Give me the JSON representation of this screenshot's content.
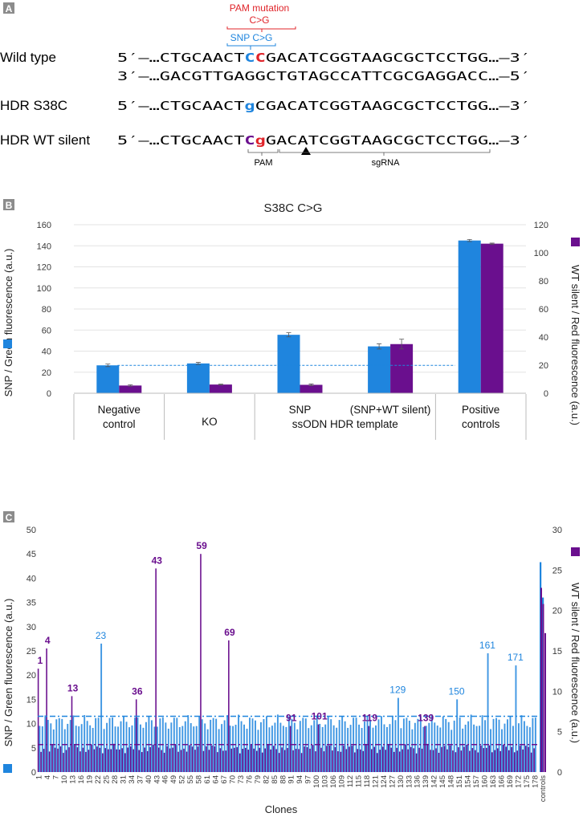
{
  "colors": {
    "blue": "#1f85de",
    "purple": "#6a0f8e",
    "red": "#e0242a",
    "panel_tag_bg": "#8c8c8c",
    "grid": "#e3e3e3",
    "axis_text": "#3a3a3a"
  },
  "panel_a": {
    "tag": "A",
    "pam_label_line1": "PAM mutation",
    "pam_label_line2": "C>G",
    "snp_label": "SNP C>G",
    "rows": [
      {
        "label": "Wild type",
        "end5": "5′–…",
        "pre": "CTGCAACT",
        "hl": "CC",
        "post": "GACATCGGTAAGCGCTCCTGG",
        "end3": "…–3′"
      },
      {
        "label": "",
        "end5": "3′–…",
        "pre": "GACGTTGAGGCTGTAGCCATTCGCGAGGACC",
        "hl": "",
        "post": "",
        "end3": "…–5′"
      },
      {
        "label": "HDR S38C",
        "end5": "5′–…",
        "pre": "CTGCAACT",
        "hl": "g",
        "post": "CGACATCGGTAAGCGCTCCTGG",
        "end3": "…–3′"
      },
      {
        "label": "HDR WT silent",
        "end5": "5′–…",
        "pre": "CTGCAACT",
        "hl": "Cg",
        "post": "GACATCGGTAAGCGCTCCTGG",
        "end3": "…–3′"
      }
    ],
    "pam_bracket_label": "PAM",
    "sgrna_bracket_label": "sgRNA"
  },
  "chart_data": [
    {
      "type": "bar",
      "panel_tag": "B",
      "title": "S38C C>G",
      "ylabel": "SNP / Green fluorescence (a.u.)",
      "y2label": "WT silent / Red fluorescence (a.u.)",
      "ylim": [
        0,
        160
      ],
      "y2lim": [
        0,
        120
      ],
      "yticks": [
        0,
        20,
        40,
        60,
        80,
        100,
        120,
        140,
        160
      ],
      "y2ticks": [
        0,
        20,
        40,
        60,
        80,
        100,
        120
      ],
      "series": [
        {
          "name": "SNP",
          "axis": "left",
          "values": [
            26.5,
            28.3,
            55.5,
            44.5,
            145
          ],
          "errors": [
            1.2,
            1.0,
            2.0,
            2.5,
            1.0
          ]
        },
        {
          "name": "WT silent",
          "axis": "right",
          "values": [
            5.5,
            6.2,
            6.0,
            35.0,
            106.5
          ],
          "errors": [
            0.5,
            0.3,
            0.6,
            3.5,
            0.4
          ]
        }
      ],
      "baseline_value": 26.5,
      "category_labels": [
        {
          "text": "Negative",
          "line2": "control"
        },
        {
          "text": "KO",
          "line2": ""
        },
        {
          "text": "SNP",
          "line2": ""
        },
        {
          "text": "(SNP+WT silent)",
          "line2": ""
        },
        {
          "text": "Positive",
          "line2": "controls"
        }
      ],
      "group_label": "ssODN HDR template"
    },
    {
      "type": "bar",
      "panel_tag": "C",
      "xlabel": "Clones",
      "ylabel": "SNP / Green fluorescence (a.u.)",
      "y2label": "WT silent / Red fluorescence (a.u.)",
      "ylim": [
        0,
        50
      ],
      "y2lim": [
        0,
        30
      ],
      "yticks": [
        0,
        5,
        10,
        15,
        20,
        25,
        30,
        35,
        40,
        45,
        50
      ],
      "y2ticks": [
        0,
        5,
        10,
        15,
        20,
        25,
        30
      ],
      "n_clones": 178,
      "x_tick_labels": [
        "1",
        "4",
        "7",
        "10",
        "13",
        "16",
        "19",
        "22",
        "25",
        "28",
        "31",
        "34",
        "37",
        "40",
        "43",
        "46",
        "49",
        "52",
        "55",
        "58",
        "61",
        "64",
        "67",
        "70",
        "73",
        "76",
        "79",
        "82",
        "85",
        "88",
        "91",
        "94",
        "97",
        "100",
        "103",
        "106",
        "109",
        "112",
        "115",
        "118",
        "121",
        "124",
        "127",
        "130",
        "133",
        "136",
        "139",
        "142",
        "145",
        "148",
        "151",
        "154",
        "157",
        "160",
        "163",
        "166",
        "169",
        "172",
        "175",
        "178",
        "controls"
      ],
      "snp_baseline": 11.5,
      "silent_baseline": 3.4,
      "snp_highlight": [
        {
          "clone": 23,
          "value": 26.5
        },
        {
          "clone": 129,
          "value": 15.3
        },
        {
          "clone": 150,
          "value": 15.0
        },
        {
          "clone": 161,
          "value": 24.5
        },
        {
          "clone": 171,
          "value": 22.0
        }
      ],
      "silent_highlight": [
        {
          "clone": 1,
          "value": 12.8
        },
        {
          "clone": 4,
          "value": 15.3
        },
        {
          "clone": 13,
          "value": 9.4
        },
        {
          "clone": 36,
          "value": 9.0
        },
        {
          "clone": 43,
          "value": 25.2
        },
        {
          "clone": 59,
          "value": 27.0
        },
        {
          "clone": 69,
          "value": 16.3
        },
        {
          "clone": 91,
          "value": 5.7
        },
        {
          "clone": 101,
          "value": 5.9
        },
        {
          "clone": 119,
          "value": 5.7
        },
        {
          "clone": 139,
          "value": 5.7
        }
      ],
      "controls_snp": [
        43.3,
        36.0
      ],
      "controls_silent": [
        22.8,
        20.8,
        17.2
      ]
    }
  ]
}
